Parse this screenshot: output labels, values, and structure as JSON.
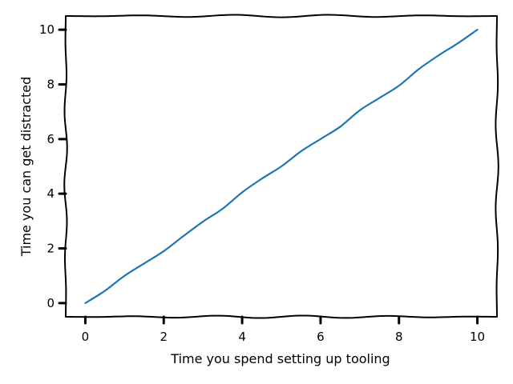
{
  "chart_data": {
    "type": "line",
    "style": "xkcd",
    "title": "",
    "xlabel": "Time you spend setting up tooling",
    "ylabel": "Time you can get distracted",
    "xlim": [
      -0.5,
      10.5
    ],
    "ylim": [
      -0.5,
      10.5
    ],
    "xticks": [
      0,
      2,
      4,
      6,
      8,
      10
    ],
    "yticks": [
      0,
      2,
      4,
      6,
      8,
      10
    ],
    "grid": false,
    "series": [
      {
        "color": "#1f77b4",
        "x": [
          0,
          0.5,
          1,
          1.5,
          2,
          2.5,
          3,
          3.5,
          4,
          4.5,
          5,
          5.5,
          6,
          6.5,
          7,
          7.5,
          8,
          8.5,
          9,
          9.5,
          10
        ],
        "y": [
          0,
          0.45,
          1.0,
          1.45,
          1.9,
          2.45,
          2.98,
          3.45,
          4.05,
          4.55,
          5.0,
          5.55,
          6.0,
          6.45,
          7.05,
          7.5,
          7.95,
          8.55,
          9.05,
          9.5,
          10.0
        ]
      }
    ]
  }
}
